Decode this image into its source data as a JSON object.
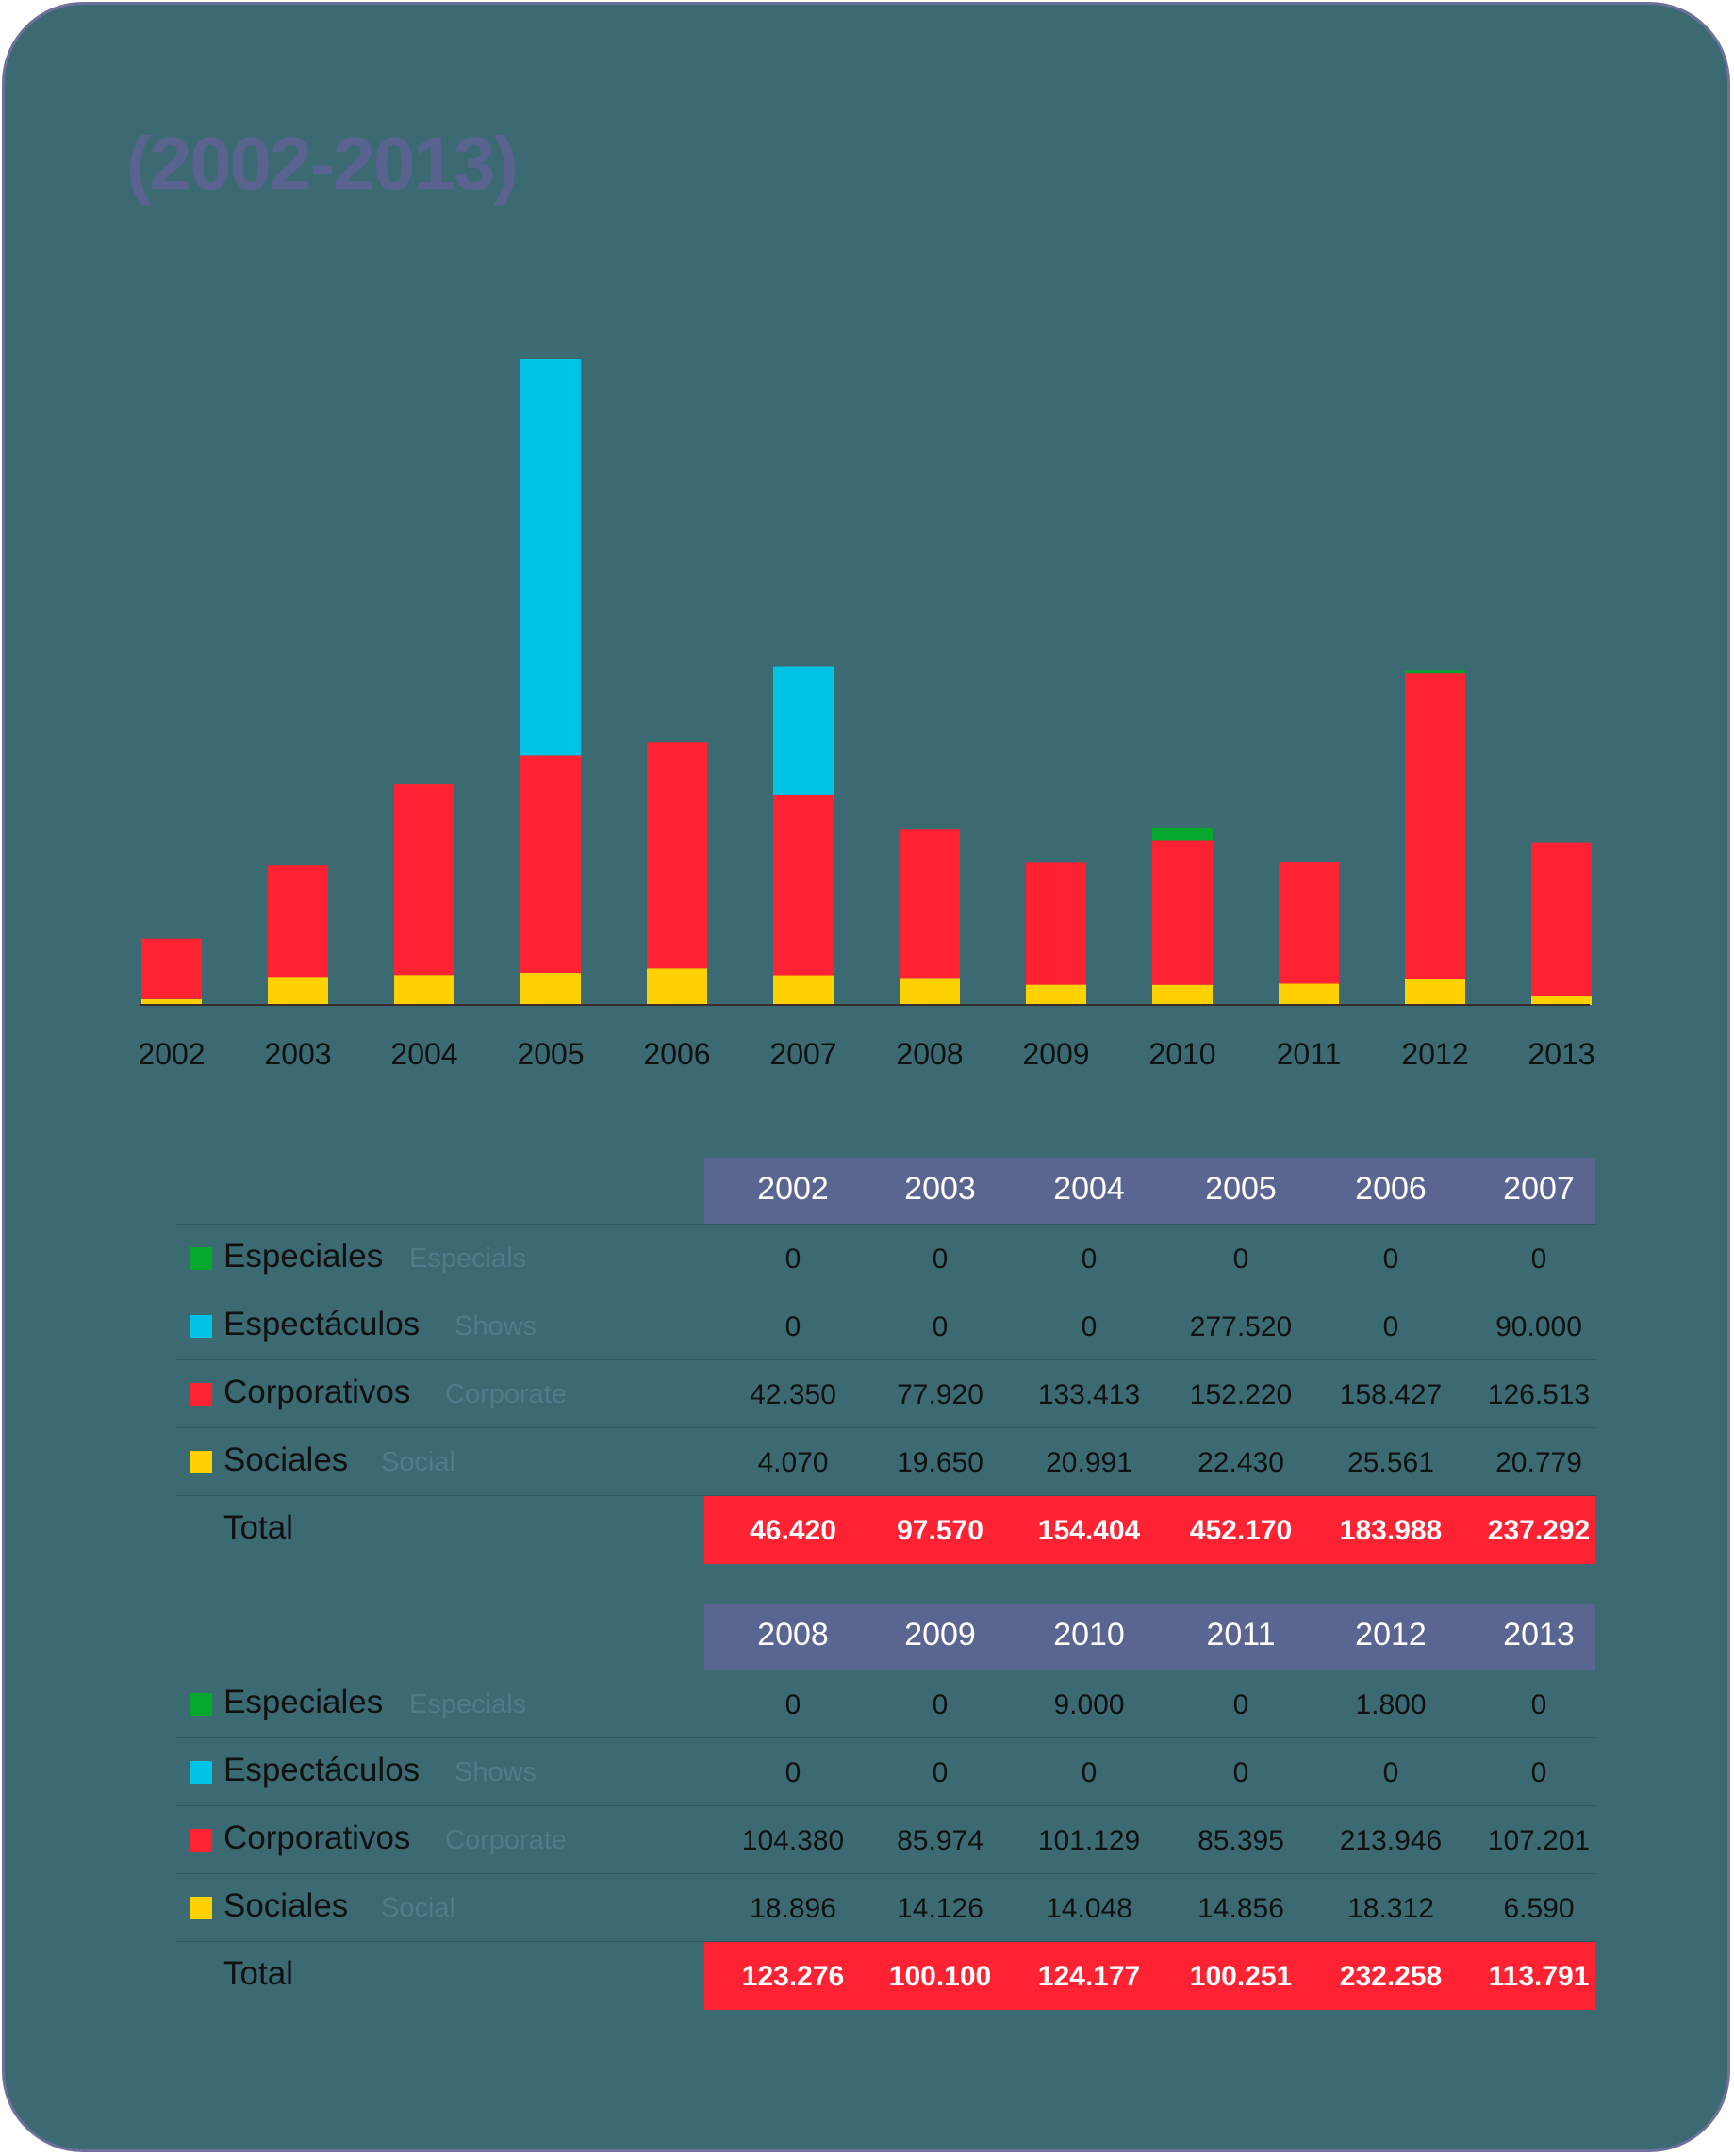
{
  "title": "(2002-2013)",
  "colors": {
    "especiales": "#05a82a",
    "espectaculos": "#00c3e5",
    "corporativos": "#fe2233",
    "sociales": "#ffd100"
  },
  "chart_data": {
    "type": "bar",
    "stacked": true,
    "title": "(2002-2013)",
    "categories": [
      "2002",
      "2003",
      "2004",
      "2005",
      "2006",
      "2007",
      "2008",
      "2009",
      "2010",
      "2011",
      "2012",
      "2013"
    ],
    "series": [
      {
        "name": "Sociales",
        "values": [
          4070,
          19650,
          20991,
          22430,
          25561,
          20779,
          18896,
          14126,
          14048,
          14856,
          18312,
          6590
        ]
      },
      {
        "name": "Corporativos",
        "values": [
          42350,
          77920,
          133413,
          152220,
          158427,
          126513,
          104380,
          85974,
          101129,
          85395,
          213946,
          107201
        ]
      },
      {
        "name": "Espectáculos",
        "values": [
          0,
          0,
          0,
          277520,
          0,
          90000,
          0,
          0,
          0,
          0,
          0,
          0
        ]
      },
      {
        "name": "Especiales",
        "values": [
          0,
          0,
          0,
          0,
          0,
          0,
          0,
          0,
          9000,
          0,
          1800,
          0
        ]
      }
    ],
    "ylim": [
      0,
      452170
    ],
    "xlabel": "",
    "ylabel": ""
  },
  "table1": {
    "years": [
      "2002",
      "2003",
      "2004",
      "2005",
      "2006",
      "2007"
    ],
    "rows": [
      {
        "label": "Especiales",
        "sub": "Especials",
        "values": [
          "0",
          "0",
          "0",
          "0",
          "0",
          "0"
        ]
      },
      {
        "label": "Espectáculos",
        "sub": "Shows",
        "values": [
          "0",
          "0",
          "0",
          "277.520",
          "0",
          "90.000"
        ]
      },
      {
        "label": "Corporativos",
        "sub": "Corporate",
        "values": [
          "42.350",
          "77.920",
          "133.413",
          "152.220",
          "158.427",
          "126.513"
        ]
      },
      {
        "label": "Sociales",
        "sub": "Social",
        "values": [
          "4.070",
          "19.650",
          "20.991",
          "22.430",
          "25.561",
          "20.779"
        ]
      }
    ],
    "total_label": "Total",
    "totals": [
      "46.420",
      "97.570",
      "154.404",
      "452.170",
      "183.988",
      "237.292"
    ]
  },
  "table2": {
    "years": [
      "2008",
      "2009",
      "2010",
      "2011",
      "2012",
      "2013"
    ],
    "rows": [
      {
        "label": "Especiales",
        "sub": "Especials",
        "values": [
          "0",
          "0",
          "9.000",
          "0",
          "1.800",
          "0"
        ]
      },
      {
        "label": "Espectáculos",
        "sub": "Shows",
        "values": [
          "0",
          "0",
          "0",
          "0",
          "0",
          "0"
        ]
      },
      {
        "label": "Corporativos",
        "sub": "Corporate",
        "values": [
          "104.380",
          "85.974",
          "101.129",
          "85.395",
          "213.946",
          "107.201"
        ]
      },
      {
        "label": "Sociales",
        "sub": "Social",
        "values": [
          "18.896",
          "14.126",
          "14.048",
          "14.856",
          "18.312",
          "6.590"
        ]
      }
    ],
    "total_label": "Total",
    "totals": [
      "123.276",
      "100.100",
      "124.177",
      "100.251",
      "232.258",
      "113.791"
    ]
  }
}
